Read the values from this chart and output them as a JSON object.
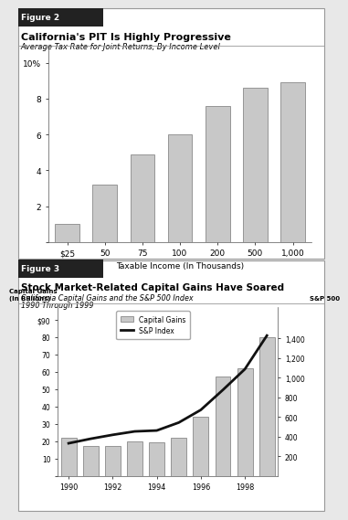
{
  "fig2": {
    "title_tag": "Figure 2",
    "title": "California's PIT Is Highly Progressive",
    "subtitle": "Average Tax Rate for Joint Returns, By Income Level",
    "categories": [
      "$25",
      "50",
      "75",
      "100",
      "200",
      "500",
      "1,000"
    ],
    "values": [
      1.0,
      3.2,
      4.9,
      6.0,
      7.6,
      8.6,
      8.9
    ],
    "bar_color": "#c8c8c8",
    "bar_edge_color": "#777777",
    "xlabel": "Taxable Income (In Thousands)",
    "yticks": [
      0,
      2,
      4,
      6,
      8,
      10
    ],
    "ytick_labels": [
      "",
      "2",
      "4",
      "6",
      "8",
      "10%"
    ],
    "ylim": [
      0,
      10.8
    ]
  },
  "fig3": {
    "title_tag": "Figure 3",
    "title": "Stock Market-Related Capital Gains Have Soared",
    "subtitle_line1": "California Capital Gains and the S&P 500 Index",
    "subtitle_line2": "1990 Through 1999",
    "years": [
      1990,
      1991,
      1992,
      1993,
      1994,
      1995,
      1996,
      1997,
      1998,
      1999
    ],
    "capital_gains": [
      22,
      17,
      17,
      20,
      19,
      22,
      34,
      57,
      62,
      80
    ],
    "sp500": [
      330,
      376,
      416,
      451,
      460,
      541,
      670,
      873,
      1085,
      1427
    ],
    "bar_color": "#c8c8c8",
    "bar_edge_color": "#777777",
    "line_color": "#111111",
    "ylabel_left": "Capital Gains\n(In Billions)",
    "ylabel_right": "S&P 500",
    "yticks_left": [
      0,
      10,
      20,
      30,
      40,
      50,
      60,
      70,
      80,
      90
    ],
    "ytick_labels_left": [
      "",
      "10",
      "20",
      "30",
      "40",
      "50",
      "60",
      "70",
      "80",
      "$90"
    ],
    "ylim_left": [
      0,
      97
    ],
    "yticks_right": [
      200,
      400,
      600,
      800,
      1000,
      1200,
      1400
    ],
    "ytick_labels_right": [
      "200",
      "400",
      "600",
      "800",
      "1,000",
      "1,200",
      "1,400"
    ],
    "ylim_right": [
      0,
      1715
    ],
    "xtick_pos": [
      0,
      2,
      4,
      6,
      8
    ],
    "xtick_labels": [
      "1990",
      "1992",
      "1994",
      "1996",
      "1998"
    ],
    "legend_labels": [
      "Capital Gains",
      "S&P Index"
    ]
  },
  "bg_color": "#e8e8e8",
  "panel_bg": "#ffffff",
  "tag_bg": "#222222",
  "tag_fg": "#ffffff",
  "border_color": "#999999"
}
